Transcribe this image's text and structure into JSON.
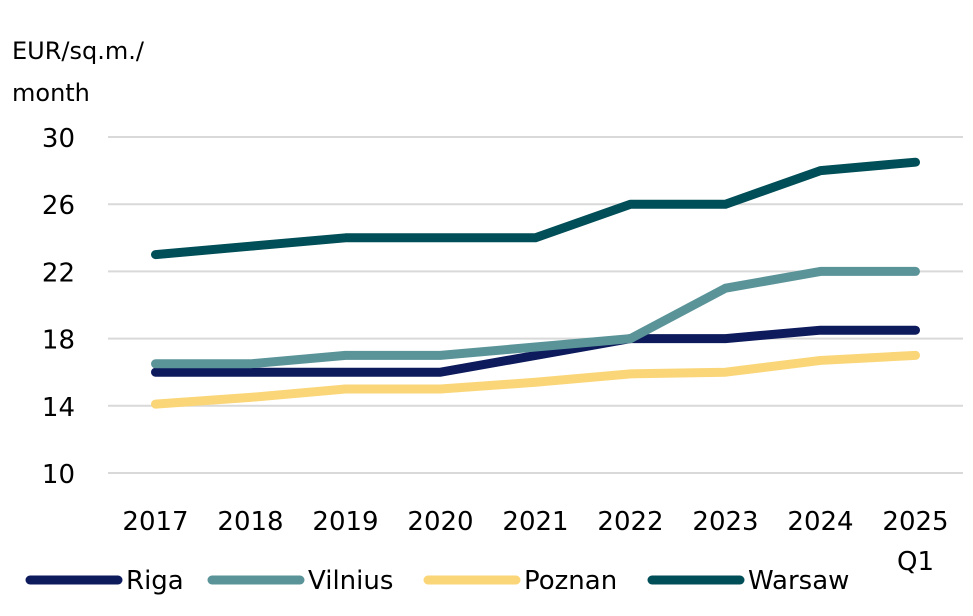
{
  "chart_data": {
    "type": "line",
    "title": "",
    "xlabel": "",
    "ylabel_line1": "EUR/sq.m./",
    "ylabel_line2": "month",
    "categories": [
      "2017",
      "2018",
      "2019",
      "2020",
      "2021",
      "2022",
      "2023",
      "2024",
      "2025"
    ],
    "category_sublabels": [
      "",
      "",
      "",
      "",
      "",
      "",
      "",
      "",
      "Q1"
    ],
    "ylim": [
      10,
      30
    ],
    "yticks": [
      10,
      14,
      18,
      22,
      26,
      30
    ],
    "grid": true,
    "legend_position": "bottom",
    "series": [
      {
        "name": "Riga",
        "color": "#0d1a5c",
        "values": [
          16,
          16,
          16,
          16,
          17,
          18,
          18,
          18.5,
          18.5
        ]
      },
      {
        "name": "Vilnius",
        "color": "#5a9499",
        "values": [
          16.5,
          16.5,
          17,
          17,
          17.5,
          18,
          21,
          22,
          22
        ]
      },
      {
        "name": "Poznan",
        "color": "#fad678",
        "values": [
          14.1,
          14.5,
          15,
          15,
          15.4,
          15.9,
          16,
          16.7,
          17
        ]
      },
      {
        "name": "Warsaw",
        "color": "#004e57",
        "values": [
          23,
          23.5,
          24,
          24,
          24,
          26,
          26,
          28,
          28.5
        ]
      }
    ]
  }
}
